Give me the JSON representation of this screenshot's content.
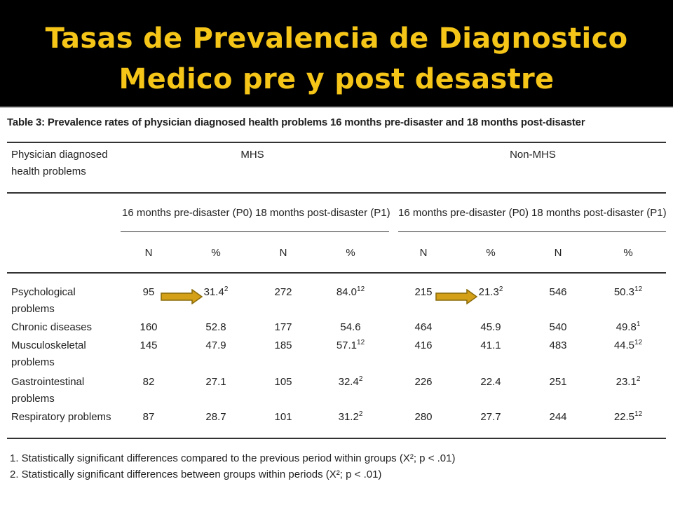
{
  "slide": {
    "title_line1": "Tasas de Prevalencia de Diagnostico",
    "title_line2": "Medico pre y post desastre",
    "title_color": "#f5c518",
    "band_color": "#000000",
    "arrow_color": "#d4a017"
  },
  "table": {
    "caption": "Table 3: Prevalence rates of physician diagnosed health problems 16 months pre-disaster and 18 months post-disaster",
    "row_header_line1": "Physician diagnosed",
    "row_header_line2": "health problems",
    "group_mhs": "MHS",
    "group_non_mhs": "Non-MHS",
    "period_pre": "16 months pre-disaster (P0)",
    "period_post": "18 months post-disaster (P1)",
    "col_n": "N",
    "col_pct": "%",
    "rows": [
      {
        "label1": "Psychological",
        "label2": "problems",
        "cells": [
          {
            "v": "95",
            "s": ""
          },
          {
            "v": "31.4",
            "s": "2"
          },
          {
            "v": "272",
            "s": ""
          },
          {
            "v": "84.0",
            "s": "12"
          },
          {
            "v": "215",
            "s": ""
          },
          {
            "v": "21.3",
            "s": "2"
          },
          {
            "v": "546",
            "s": ""
          },
          {
            "v": "50.3",
            "s": "12"
          }
        ]
      },
      {
        "label1": "Chronic diseases",
        "label2": "",
        "cells": [
          {
            "v": "160",
            "s": ""
          },
          {
            "v": "52.8",
            "s": ""
          },
          {
            "v": "177",
            "s": ""
          },
          {
            "v": "54.6",
            "s": ""
          },
          {
            "v": "464",
            "s": ""
          },
          {
            "v": "45.9",
            "s": ""
          },
          {
            "v": "540",
            "s": ""
          },
          {
            "v": "49.8",
            "s": "1"
          }
        ]
      },
      {
        "label1": "Musculoskeletal",
        "label2": "problems",
        "cells": [
          {
            "v": "145",
            "s": ""
          },
          {
            "v": "47.9",
            "s": ""
          },
          {
            "v": "185",
            "s": ""
          },
          {
            "v": "57.1",
            "s": "12"
          },
          {
            "v": "416",
            "s": ""
          },
          {
            "v": "41.1",
            "s": ""
          },
          {
            "v": "483",
            "s": ""
          },
          {
            "v": "44.5",
            "s": "12"
          }
        ]
      },
      {
        "label1": "Gastrointestinal",
        "label2": "problems",
        "cells": [
          {
            "v": "82",
            "s": ""
          },
          {
            "v": "27.1",
            "s": ""
          },
          {
            "v": "105",
            "s": ""
          },
          {
            "v": "32.4",
            "s": "2"
          },
          {
            "v": "226",
            "s": ""
          },
          {
            "v": "22.4",
            "s": ""
          },
          {
            "v": "251",
            "s": ""
          },
          {
            "v": "23.1",
            "s": "2"
          }
        ]
      },
      {
        "label1": "Respiratory problems",
        "label2": "",
        "cells": [
          {
            "v": "87",
            "s": ""
          },
          {
            "v": "28.7",
            "s": ""
          },
          {
            "v": "101",
            "s": ""
          },
          {
            "v": "31.2",
            "s": "2"
          },
          {
            "v": "280",
            "s": ""
          },
          {
            "v": "27.7",
            "s": ""
          },
          {
            "v": "244",
            "s": ""
          },
          {
            "v": "22.5",
            "s": "12"
          }
        ]
      }
    ],
    "footnote1": "1. Statistically significant differences compared to the previous period within groups (X²; p < .01)",
    "footnote2": "2. Statistically significant differences between groups within periods (X²; p < .01)"
  }
}
